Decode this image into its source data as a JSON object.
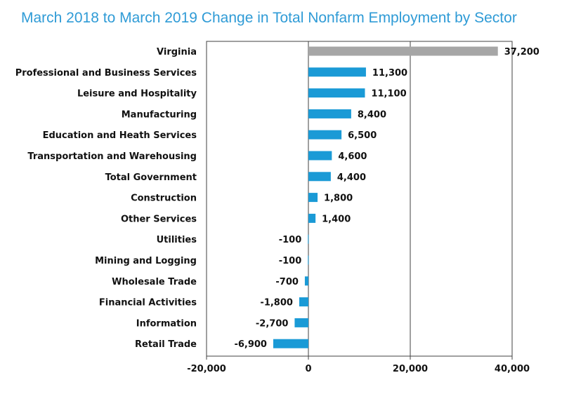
{
  "chart_data": {
    "type": "bar",
    "orientation": "horizontal",
    "title": "March 2018 to March 2019 Change in Total Nonfarm Employment by Sector",
    "categories": [
      "Virginia",
      "Professional and Business Services",
      "Leisure and Hospitality",
      "Manufacturing",
      "Education and Heath Services",
      "Transportation and Warehousing",
      "Total Government",
      "Construction",
      "Other Services",
      "Utilities",
      "Mining and Logging",
      "Wholesale Trade",
      "Financial Activities",
      "Information",
      "Retail Trade"
    ],
    "values": [
      37200,
      11300,
      11100,
      8400,
      6500,
      4600,
      4400,
      1800,
      1400,
      -100,
      -100,
      -700,
      -1800,
      -2700,
      -6900
    ],
    "value_labels": [
      "37,200",
      "11,300",
      "11,100",
      "8,400",
      "6,500",
      "4,600",
      "4,400",
      "1,800",
      "1,400",
      "-100",
      "-100",
      "-700",
      "-1,800",
      "-2,700",
      "-6,900"
    ],
    "xlim": [
      -20000,
      40000
    ],
    "xticks": [
      -20000,
      0,
      20000,
      40000
    ],
    "xtick_labels": [
      "-20,000",
      "0",
      "20,000",
      "40,000"
    ],
    "gridlines": [
      20000
    ],
    "colors": {
      "total": "#a6a6a6",
      "sector": "#1a9ad6",
      "title": "#2f9bd6",
      "axis": "#404040"
    }
  }
}
